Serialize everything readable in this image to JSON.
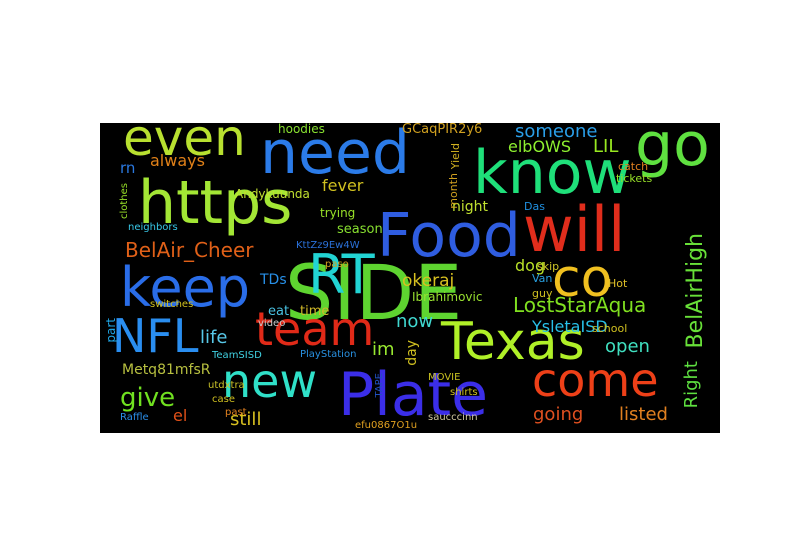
{
  "words": [
    {
      "text": "SIDE",
      "color": "#5ed430"
    },
    {
      "text": "Food",
      "color": "#2f5de0"
    },
    {
      "text": "will",
      "color": "#e02d1c"
    },
    {
      "text": "https",
      "color": "#a3e635"
    },
    {
      "text": "need",
      "color": "#2b7be8"
    },
    {
      "text": "know",
      "color": "#1fe07a"
    },
    {
      "text": "go",
      "color": "#5fe040"
    },
    {
      "text": "keep",
      "color": "#2a6de8"
    },
    {
      "text": "RT",
      "color": "#22d4d4"
    },
    {
      "text": "co",
      "color": "#f0c020"
    },
    {
      "text": "even",
      "color": "#b8e030"
    },
    {
      "text": "Plate",
      "color": "#3b2ee8"
    },
    {
      "text": "Texas",
      "color": "#b0f028"
    },
    {
      "text": "come",
      "color": "#ee4018"
    },
    {
      "text": "new",
      "color": "#30e0c8"
    },
    {
      "text": "team",
      "color": "#e02a18"
    },
    {
      "text": "NFL",
      "color": "#2a8ef0"
    },
    {
      "text": "BelAir_Cheer",
      "color": "#e06018"
    },
    {
      "text": "BelAirHigh",
      "color": "#68e038"
    },
    {
      "text": "LostStarAqua",
      "color": "#80e020"
    },
    {
      "text": "someone",
      "color": "#2a9ee8"
    },
    {
      "text": "elbOWS",
      "color": "#8ef030"
    },
    {
      "text": "LIL",
      "color": "#98e820"
    },
    {
      "text": "okeraj",
      "color": "#d8c020"
    },
    {
      "text": "Right",
      "color": "#5ee040"
    },
    {
      "text": "give",
      "color": "#70e020"
    },
    {
      "text": "still",
      "color": "#d8c020"
    },
    {
      "text": "Metq81mfsR",
      "color": "#b8c040"
    },
    {
      "text": "going",
      "color": "#e05020"
    },
    {
      "text": "listed",
      "color": "#e08020"
    },
    {
      "text": "open",
      "color": "#40e0c0"
    },
    {
      "text": "YsletaISD",
      "color": "#28c0e8"
    },
    {
      "text": "life",
      "color": "#58c8e8"
    },
    {
      "text": "now",
      "color": "#40d8d0"
    },
    {
      "text": "im",
      "color": "#98e830"
    },
    {
      "text": "el",
      "color": "#e05018"
    },
    {
      "text": "always",
      "color": "#e08018"
    },
    {
      "text": "fever",
      "color": "#d0c020"
    },
    {
      "text": "season",
      "color": "#88e030"
    },
    {
      "text": "night",
      "color": "#c0e030"
    },
    {
      "text": "dog",
      "color": "#b8e028"
    },
    {
      "text": "Ibrahimovic",
      "color": "#98e030"
    },
    {
      "text": "day",
      "color": "#d0c020"
    },
    {
      "text": "TDs",
      "color": "#2890e8"
    },
    {
      "text": "eat",
      "color": "#48c0e0"
    },
    {
      "text": "time",
      "color": "#d0b828"
    },
    {
      "text": "part",
      "color": "#20a8e8"
    },
    {
      "text": "rn",
      "color": "#2a78e0"
    },
    {
      "text": "trying",
      "color": "#98e028"
    },
    {
      "text": "Andykuunda",
      "color": "#c0e030"
    },
    {
      "text": "hoodies",
      "color": "#88e030"
    },
    {
      "text": "GCaqPIR2y6",
      "color": "#d0a020"
    },
    {
      "text": "Das",
      "color": "#2090e0"
    },
    {
      "text": "skip",
      "color": "#d0c828"
    },
    {
      "text": "Van",
      "color": "#28a0e0"
    },
    {
      "text": "guy",
      "color": "#d0c020"
    },
    {
      "text": "Hot",
      "color": "#e0c028"
    },
    {
      "text": "school",
      "color": "#d0c020"
    },
    {
      "text": "catch",
      "color": "#e08020"
    },
    {
      "text": "tickets",
      "color": "#98e028"
    },
    {
      "text": "month",
      "color": "#d0a020"
    },
    {
      "text": "Yield",
      "color": "#d0b020"
    },
    {
      "text": "neighbors",
      "color": "#38c8e8"
    },
    {
      "text": "clothes",
      "color": "#98e028"
    },
    {
      "text": "switches",
      "color": "#d0c020"
    },
    {
      "text": "KttZz9Ew4W",
      "color": "#2a70d8"
    },
    {
      "text": "video",
      "color": "#c8c8c8"
    },
    {
      "text": "PlayStation",
      "color": "#2890e0"
    },
    {
      "text": "TeamSISD",
      "color": "#40d0e0"
    },
    {
      "text": "utdxtra",
      "color": "#c8c028"
    },
    {
      "text": "case",
      "color": "#d0c020"
    },
    {
      "text": "past",
      "color": "#e08020"
    },
    {
      "text": "Raffle",
      "color": "#2a8ee8"
    },
    {
      "text": "efu0867O1u",
      "color": "#e0a020"
    },
    {
      "text": "saucccinn",
      "color": "#d0c8a0"
    },
    {
      "text": "TAPE",
      "color": "#2050c0"
    },
    {
      "text": "MOVIE",
      "color": "#c8c020"
    },
    {
      "text": "shirts",
      "color": "#d0c020"
    },
    {
      "text": "paso",
      "color": "#d0a020"
    }
  ]
}
